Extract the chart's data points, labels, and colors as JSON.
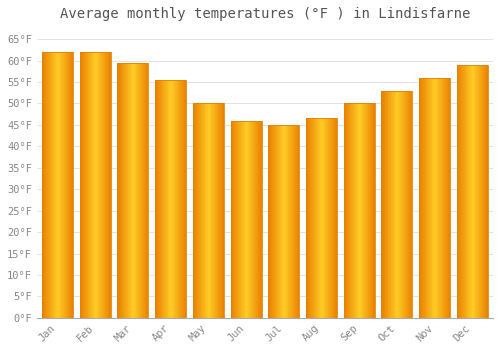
{
  "title": "Average monthly temperatures (°F ) in Lindisfarne",
  "months": [
    "Jan",
    "Feb",
    "Mar",
    "Apr",
    "May",
    "Jun",
    "Jul",
    "Aug",
    "Sep",
    "Oct",
    "Nov",
    "Dec"
  ],
  "values": [
    62,
    62,
    59.5,
    55.5,
    50,
    46,
    45,
    46.5,
    50,
    53,
    56,
    59
  ],
  "bar_color_center": "#FFCC33",
  "bar_color_edge": "#E88000",
  "bar_color_mid": "#FFA500",
  "background_color": "#FFFFFF",
  "grid_color": "#DDDDDD",
  "ylim": [
    0,
    68
  ],
  "yticks": [
    0,
    5,
    10,
    15,
    20,
    25,
    30,
    35,
    40,
    45,
    50,
    55,
    60,
    65
  ],
  "title_fontsize": 10,
  "tick_fontsize": 7.5,
  "font_family": "monospace"
}
